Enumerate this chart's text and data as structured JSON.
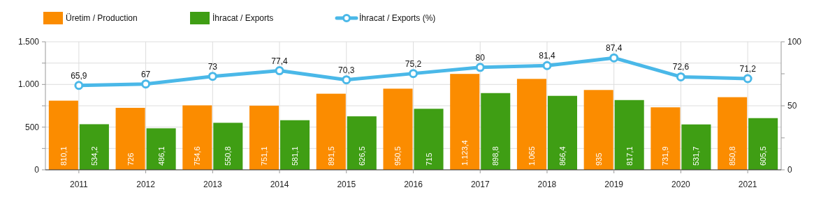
{
  "chart_data": {
    "type": "bar",
    "categories": [
      "2011",
      "2012",
      "2013",
      "2014",
      "2015",
      "2016",
      "2017",
      "2018",
      "2019",
      "2020",
      "2021"
    ],
    "series": [
      {
        "name": "Üretim / Production",
        "color": "#fb8c00",
        "values": [
          810.1,
          726,
          754.6,
          751.1,
          891.5,
          950.5,
          1123.4,
          1065,
          935,
          731.9,
          850.8
        ],
        "value_labels": [
          "810,1",
          "726",
          "754,6",
          "751,1",
          "891,5",
          "950,5",
          "1.123,4",
          "1.065",
          "935",
          "731,9",
          "850,8"
        ]
      },
      {
        "name": "İhracat / Exports",
        "color": "#3f9e14",
        "values": [
          534.2,
          486.1,
          550.8,
          581.1,
          626.5,
          715,
          898.8,
          866.4,
          817.1,
          531.7,
          605.5
        ],
        "value_labels": [
          "534,2",
          "486,1",
          "550,8",
          "581,1",
          "626,5",
          "715",
          "898,8",
          "866,4",
          "817,1",
          "531,7",
          "605,5"
        ]
      },
      {
        "name": "İhracat / Exports (%)",
        "type": "line",
        "axis": "y2",
        "color": "#4ab8e8",
        "values": [
          65.9,
          67,
          73,
          77.4,
          70.3,
          75.2,
          80,
          81.4,
          87.4,
          72.6,
          71.2
        ],
        "value_labels": [
          "65,9",
          "67",
          "73",
          "77,4",
          "70,3",
          "75,2",
          "80",
          "81,4",
          "87,4",
          "72,6",
          "71,2"
        ]
      }
    ],
    "ylim": [
      0,
      1500
    ],
    "yticks": [
      0,
      {
        "value": 250,
        "label": null
      },
      500,
      {
        "value": 750,
        "label": null
      },
      {
        "value": 1000,
        "label": "1.000"
      },
      {
        "value": 1250,
        "label": null
      },
      {
        "value": 1500,
        "label": "1.500"
      }
    ],
    "y2lim": [
      0,
      100
    ],
    "y2ticks": [
      0,
      {
        "value": 25,
        "label": null
      },
      50,
      {
        "value": 75,
        "label": null
      },
      100
    ],
    "grid": true,
    "legend": "top left",
    "marker": "circle"
  }
}
